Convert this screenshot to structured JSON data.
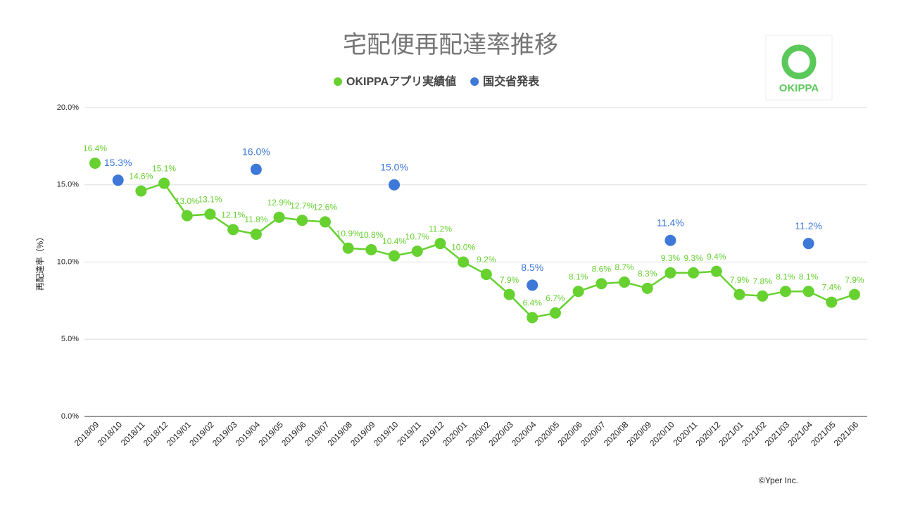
{
  "chart_data": {
    "type": "line",
    "title": "宅配便再配達率推移",
    "y_label": "再配達率（%）",
    "logo": "OKIPPA",
    "credit": "©Yper Inc.",
    "categories": [
      "2018/09",
      "2018/10",
      "2018/11",
      "2018/12",
      "2019/01",
      "2019/02",
      "2019/03",
      "2019/04",
      "2019/05",
      "2019/06",
      "2019/07",
      "2019/08",
      "2019/09",
      "2019/10",
      "2019/11",
      "2019/12",
      "2020/01",
      "2020/02",
      "2020/03",
      "2020/04",
      "2020/05",
      "2020/06",
      "2020/07",
      "2020/08",
      "2020/09",
      "2020/10",
      "2020/11",
      "2020/12",
      "2021/01",
      "2021/02",
      "2021/03",
      "2021/04",
      "2021/05",
      "2021/06"
    ],
    "series": [
      {
        "name": "OKIPPAアプリ実績値",
        "color": "#66d12f",
        "values": [
          16.4,
          null,
          14.6,
          15.1,
          13.0,
          13.1,
          12.1,
          11.8,
          12.9,
          12.7,
          12.6,
          10.9,
          10.8,
          10.4,
          10.7,
          11.2,
          10.0,
          9.2,
          7.9,
          6.4,
          6.7,
          8.1,
          8.6,
          8.7,
          8.3,
          9.3,
          9.3,
          9.4,
          7.9,
          7.8,
          8.1,
          8.1,
          7.4,
          7.9
        ],
        "value_labels": [
          "16.4%",
          null,
          "14.6%",
          "15.1%",
          "13.0%",
          "13.1%",
          "12.1%",
          "11.8%",
          "12.9%",
          "12.7%",
          "12.6%",
          "10.9%",
          "10.8%",
          "10.4%",
          "10.7%",
          "11.2%",
          "10.0%",
          "9.2%",
          "7.9%",
          "6.4%",
          "6.7%",
          "8.1%",
          "8.6%",
          "8.7%",
          "8.3%",
          "9.3%",
          "9.3%",
          "9.4%",
          "7.9%",
          "7.8%",
          "8.1%",
          "8.1%",
          "7.4%",
          "7.9%"
        ]
      },
      {
        "name": "国交省発表",
        "color": "#3e78d8",
        "values": [
          null,
          15.3,
          null,
          null,
          null,
          null,
          null,
          16.0,
          null,
          null,
          null,
          null,
          null,
          15.0,
          null,
          null,
          null,
          null,
          null,
          8.5,
          null,
          null,
          null,
          null,
          null,
          11.4,
          null,
          null,
          null,
          null,
          null,
          11.2,
          null,
          null
        ],
        "value_labels": [
          null,
          "15.3%",
          null,
          null,
          null,
          null,
          null,
          "16.0%",
          null,
          null,
          null,
          null,
          null,
          "15.0%",
          null,
          null,
          null,
          null,
          null,
          "8.5%",
          null,
          null,
          null,
          null,
          null,
          "11.4%",
          null,
          null,
          null,
          null,
          null,
          "11.2%",
          null,
          null
        ]
      }
    ],
    "ylim": [
      0,
      20
    ],
    "yticks": [
      {
        "value": 0,
        "label": "0.0%"
      },
      {
        "value": 5,
        "label": "5.0%"
      },
      {
        "value": 10,
        "label": "10.0%"
      },
      {
        "value": 15,
        "label": "15.0%"
      },
      {
        "value": 20,
        "label": "20.0%"
      }
    ],
    "grid": true
  }
}
